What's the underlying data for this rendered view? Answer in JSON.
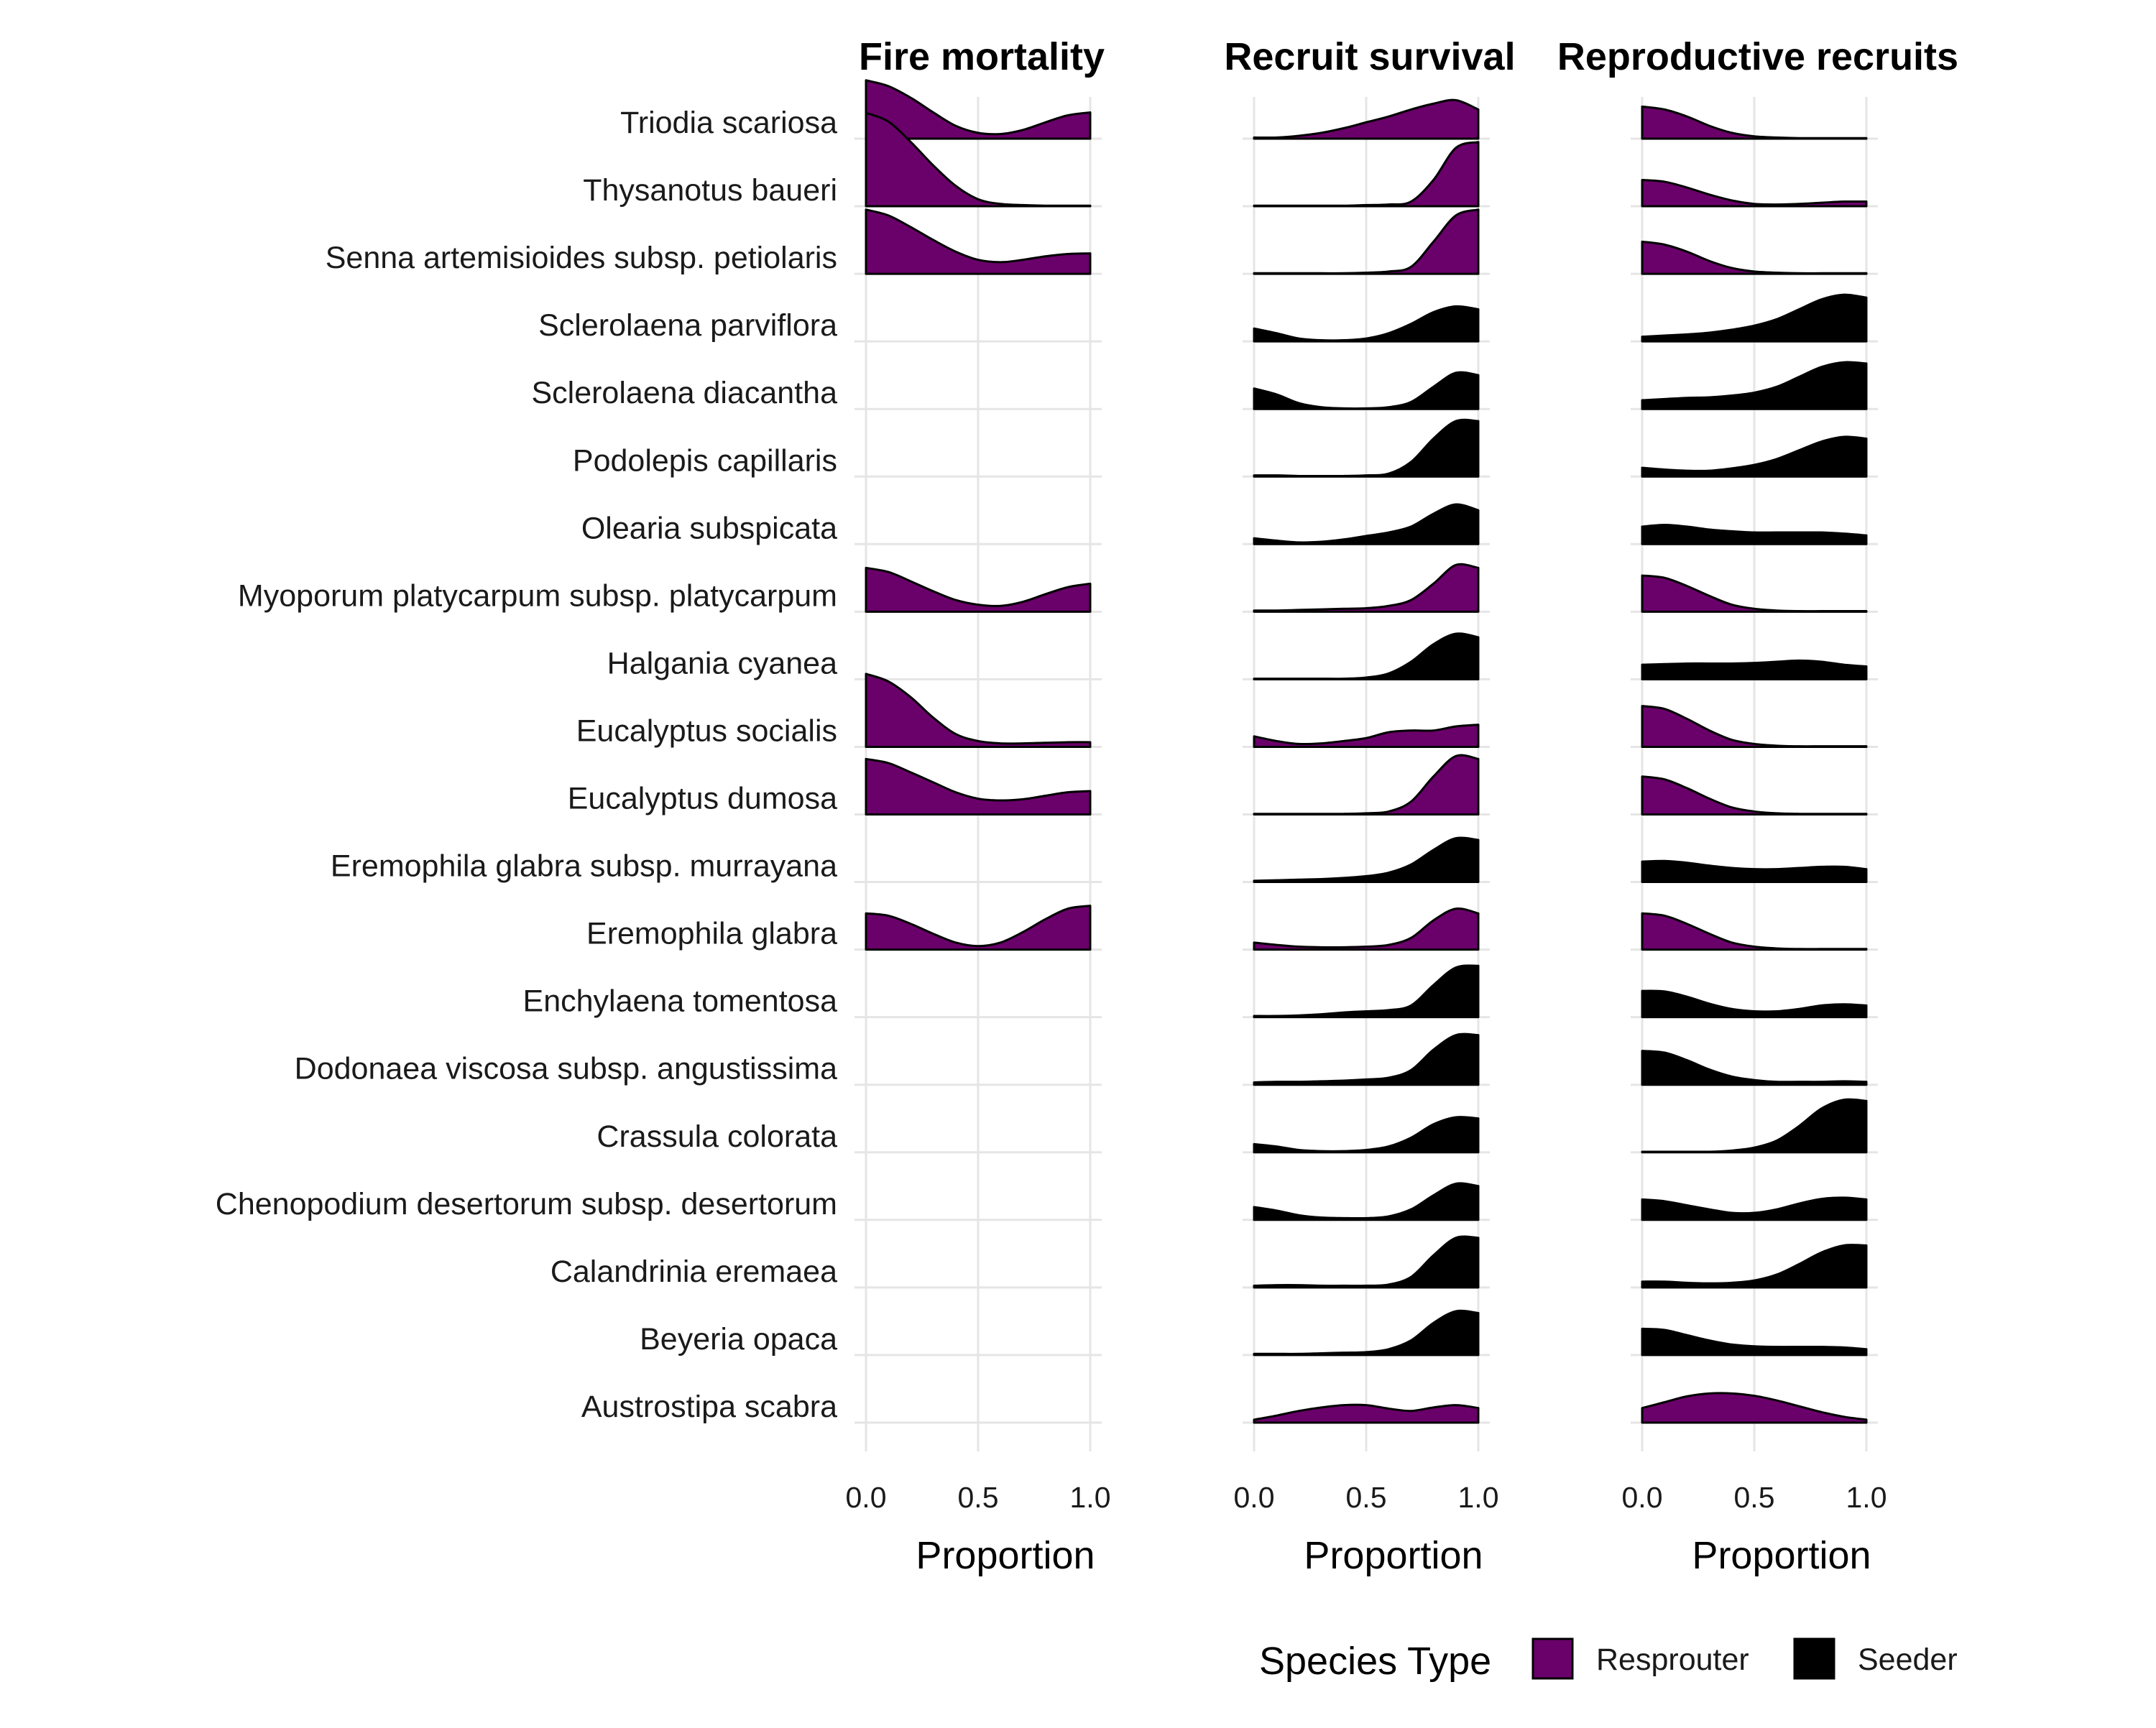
{
  "chart_data": {
    "type": "ridgeline",
    "species": [
      "Triodia scariosa",
      "Thysanotus baueri",
      "Senna artemisioides subsp. petiolaris",
      "Sclerolaena parviflora",
      "Sclerolaena diacantha",
      "Podolepis capillaris",
      "Olearia subspicata",
      "Myoporum platycarpum subsp. platycarpum",
      "Halgania cyanea",
      "Eucalyptus socialis",
      "Eucalyptus dumosa",
      "Eremophila glabra subsp. murrayana",
      "Eremophila glabra",
      "Enchylaena tomentosa",
      "Dodonaea viscosa subsp. angustissima",
      "Crassula colorata",
      "Chenopodium desertorum subsp. desertorum",
      "Calandrinia eremaea",
      "Beyeria opaca",
      "Austrostipa scabra"
    ],
    "species_type": [
      "Resprouter",
      "Resprouter",
      "Resprouter",
      "Seeder",
      "Seeder",
      "Seeder",
      "Seeder",
      "Resprouter",
      "Seeder",
      "Resprouter",
      "Resprouter",
      "Seeder",
      "Resprouter",
      "Seeder",
      "Seeder",
      "Seeder",
      "Seeder",
      "Seeder",
      "Seeder",
      "Resprouter"
    ],
    "x_grid": [
      0,
      0.1,
      0.2,
      0.3,
      0.4,
      0.5,
      0.6,
      0.7,
      0.8,
      0.9,
      1.0
    ],
    "panels": [
      {
        "title": "Fire mortality",
        "xlabel": "Proportion",
        "xlim": [
          0,
          1
        ],
        "ticks": [
          "0.0",
          "0.5",
          "1.0"
        ],
        "density": [
          [
            1.0,
            0.9,
            0.7,
            0.45,
            0.22,
            0.1,
            0.08,
            0.15,
            0.28,
            0.4,
            0.45
          ],
          [
            1.6,
            1.45,
            1.1,
            0.7,
            0.35,
            0.12,
            0.04,
            0.02,
            0.01,
            0.01,
            0.01
          ],
          [
            1.1,
            1.0,
            0.8,
            0.58,
            0.38,
            0.24,
            0.2,
            0.24,
            0.3,
            0.34,
            0.35
          ],
          null,
          null,
          null,
          null,
          [
            0.75,
            0.68,
            0.52,
            0.35,
            0.2,
            0.12,
            0.1,
            0.17,
            0.3,
            0.42,
            0.48
          ],
          null,
          [
            1.25,
            1.12,
            0.85,
            0.5,
            0.22,
            0.1,
            0.06,
            0.06,
            0.07,
            0.08,
            0.08
          ],
          [
            0.95,
            0.88,
            0.72,
            0.55,
            0.38,
            0.27,
            0.24,
            0.26,
            0.32,
            0.38,
            0.4
          ],
          null,
          [
            0.62,
            0.58,
            0.44,
            0.27,
            0.12,
            0.06,
            0.12,
            0.3,
            0.52,
            0.7,
            0.75
          ],
          null,
          null,
          null,
          null,
          null,
          null,
          null
        ]
      },
      {
        "title": "Recruit survival",
        "xlabel": "Proportion",
        "xlim": [
          0,
          1
        ],
        "ticks": [
          "0.0",
          "0.5",
          "1.0"
        ],
        "density": [
          [
            0.02,
            0.02,
            0.05,
            0.1,
            0.18,
            0.28,
            0.38,
            0.5,
            0.6,
            0.66,
            0.5
          ],
          [
            0.01,
            0.01,
            0.01,
            0.01,
            0.01,
            0.02,
            0.03,
            0.08,
            0.45,
            1.0,
            1.1
          ],
          [
            0.01,
            0.01,
            0.01,
            0.01,
            0.01,
            0.02,
            0.04,
            0.12,
            0.55,
            1.0,
            1.1
          ],
          [
            0.22,
            0.14,
            0.05,
            0.02,
            0.02,
            0.05,
            0.14,
            0.3,
            0.5,
            0.6,
            0.55
          ],
          [
            0.35,
            0.25,
            0.1,
            0.03,
            0.01,
            0.01,
            0.03,
            0.12,
            0.38,
            0.62,
            0.58
          ],
          [
            0.02,
            0.02,
            0.01,
            0.01,
            0.01,
            0.02,
            0.05,
            0.25,
            0.65,
            0.95,
            0.95
          ],
          [
            0.1,
            0.06,
            0.03,
            0.04,
            0.08,
            0.14,
            0.2,
            0.3,
            0.52,
            0.68,
            0.58
          ],
          [
            0.02,
            0.02,
            0.03,
            0.04,
            0.05,
            0.06,
            0.1,
            0.2,
            0.48,
            0.8,
            0.75
          ],
          [
            0.01,
            0.01,
            0.01,
            0.01,
            0.01,
            0.03,
            0.1,
            0.3,
            0.6,
            0.78,
            0.72
          ],
          [
            0.18,
            0.1,
            0.05,
            0.06,
            0.1,
            0.15,
            0.25,
            0.28,
            0.28,
            0.35,
            0.38
          ],
          [
            0.01,
            0.01,
            0.01,
            0.01,
            0.01,
            0.02,
            0.05,
            0.22,
            0.65,
            1.0,
            0.95
          ],
          [
            0.02,
            0.03,
            0.04,
            0.05,
            0.07,
            0.1,
            0.16,
            0.3,
            0.55,
            0.75,
            0.72
          ],
          [
            0.12,
            0.08,
            0.05,
            0.04,
            0.04,
            0.05,
            0.08,
            0.2,
            0.5,
            0.7,
            0.62
          ],
          [
            0.02,
            0.02,
            0.03,
            0.05,
            0.08,
            0.1,
            0.12,
            0.2,
            0.55,
            0.85,
            0.88
          ],
          [
            0.04,
            0.05,
            0.05,
            0.06,
            0.07,
            0.09,
            0.12,
            0.25,
            0.6,
            0.85,
            0.85
          ],
          [
            0.14,
            0.1,
            0.04,
            0.02,
            0.02,
            0.04,
            0.1,
            0.25,
            0.48,
            0.6,
            0.58
          ],
          [
            0.22,
            0.16,
            0.08,
            0.04,
            0.03,
            0.03,
            0.06,
            0.18,
            0.42,
            0.62,
            0.58
          ],
          [
            0.03,
            0.04,
            0.04,
            0.03,
            0.03,
            0.03,
            0.05,
            0.18,
            0.55,
            0.85,
            0.85
          ],
          [
            0.02,
            0.02,
            0.02,
            0.03,
            0.04,
            0.05,
            0.1,
            0.25,
            0.55,
            0.75,
            0.72
          ],
          [
            0.05,
            0.12,
            0.2,
            0.26,
            0.3,
            0.3,
            0.24,
            0.2,
            0.26,
            0.3,
            0.25
          ]
        ]
      },
      {
        "title": "Reproductive recruits",
        "xlabel": "Proportion",
        "xlim": [
          0,
          1
        ],
        "ticks": [
          "0.0",
          "0.5",
          "1.0"
        ],
        "density": [
          [
            0.55,
            0.5,
            0.38,
            0.22,
            0.1,
            0.04,
            0.02,
            0.01,
            0.01,
            0.01,
            0.01
          ],
          [
            0.45,
            0.42,
            0.32,
            0.2,
            0.1,
            0.04,
            0.03,
            0.04,
            0.06,
            0.08,
            0.08
          ],
          [
            0.55,
            0.5,
            0.38,
            0.22,
            0.1,
            0.04,
            0.02,
            0.01,
            0.01,
            0.01,
            0.01
          ],
          [
            0.08,
            0.1,
            0.12,
            0.15,
            0.2,
            0.27,
            0.38,
            0.55,
            0.72,
            0.8,
            0.75
          ],
          [
            0.15,
            0.17,
            0.19,
            0.2,
            0.23,
            0.28,
            0.38,
            0.55,
            0.72,
            0.8,
            0.78
          ],
          [
            0.15,
            0.12,
            0.1,
            0.1,
            0.14,
            0.2,
            0.3,
            0.45,
            0.6,
            0.68,
            0.65
          ],
          [
            0.3,
            0.33,
            0.3,
            0.25,
            0.22,
            0.2,
            0.2,
            0.2,
            0.2,
            0.18,
            0.15
          ],
          [
            0.62,
            0.58,
            0.44,
            0.27,
            0.12,
            0.05,
            0.02,
            0.01,
            0.01,
            0.01,
            0.01
          ],
          [
            0.25,
            0.26,
            0.27,
            0.27,
            0.27,
            0.28,
            0.3,
            0.32,
            0.3,
            0.25,
            0.22
          ],
          [
            0.7,
            0.65,
            0.48,
            0.28,
            0.12,
            0.05,
            0.02,
            0.01,
            0.01,
            0.01,
            0.01
          ],
          [
            0.65,
            0.6,
            0.45,
            0.27,
            0.12,
            0.05,
            0.02,
            0.01,
            0.01,
            0.01,
            0.01
          ],
          [
            0.35,
            0.36,
            0.33,
            0.28,
            0.24,
            0.22,
            0.22,
            0.24,
            0.26,
            0.26,
            0.22
          ],
          [
            0.62,
            0.58,
            0.44,
            0.27,
            0.12,
            0.05,
            0.02,
            0.01,
            0.01,
            0.01,
            0.01
          ],
          [
            0.45,
            0.44,
            0.35,
            0.23,
            0.14,
            0.1,
            0.1,
            0.14,
            0.2,
            0.22,
            0.2
          ],
          [
            0.58,
            0.55,
            0.42,
            0.26,
            0.14,
            0.08,
            0.05,
            0.05,
            0.05,
            0.06,
            0.05
          ],
          [
            0.01,
            0.01,
            0.01,
            0.01,
            0.03,
            0.08,
            0.2,
            0.45,
            0.75,
            0.9,
            0.88
          ],
          [
            0.35,
            0.32,
            0.25,
            0.18,
            0.12,
            0.12,
            0.18,
            0.28,
            0.36,
            0.38,
            0.35
          ],
          [
            0.1,
            0.1,
            0.08,
            0.07,
            0.08,
            0.12,
            0.22,
            0.4,
            0.6,
            0.72,
            0.72
          ],
          [
            0.45,
            0.43,
            0.34,
            0.25,
            0.18,
            0.15,
            0.14,
            0.14,
            0.14,
            0.13,
            0.1
          ],
          [
            0.25,
            0.35,
            0.45,
            0.5,
            0.5,
            0.46,
            0.38,
            0.28,
            0.18,
            0.1,
            0.05
          ]
        ]
      }
    ],
    "legend": {
      "title": "Species Type",
      "position": "bottom",
      "items": [
        {
          "label": "Resprouter",
          "color": "#6a006a"
        },
        {
          "label": "Seeder",
          "color": "#000000"
        }
      ]
    }
  }
}
